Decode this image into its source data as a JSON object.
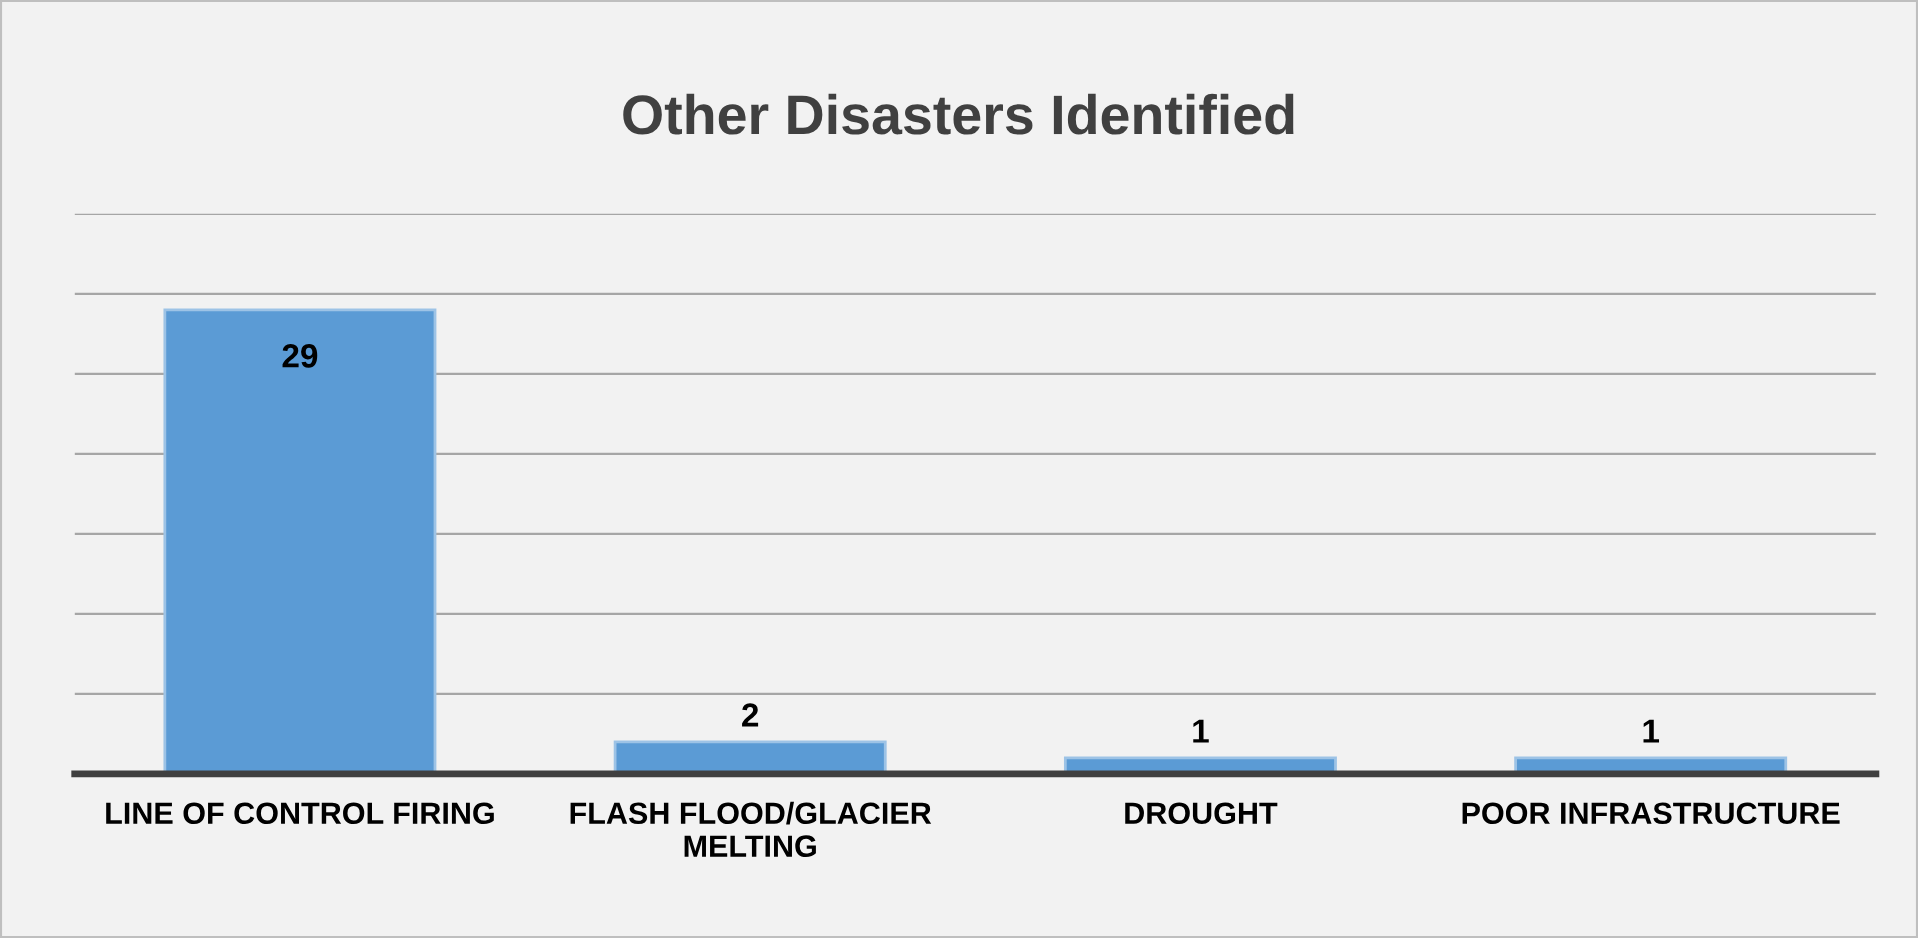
{
  "chart_data": {
    "type": "bar",
    "title": "Other Disasters Identified",
    "categories": [
      "LINE OF CONTROL FIRING",
      "FLASH FLOOD/GLACIER\nMELTING",
      "DROUGHT",
      "POOR INFRASTRUCTURE"
    ],
    "values": [
      29,
      2,
      1,
      1
    ],
    "color": "#5b9bd5",
    "ylim": [
      0,
      35
    ],
    "yticks": [
      {
        "value": 0,
        "label": null
      },
      {
        "value": 5,
        "label": null
      },
      {
        "value": 10,
        "label": null
      },
      {
        "value": 15,
        "label": null
      },
      {
        "value": 20,
        "label": null
      },
      {
        "value": 25,
        "label": null
      },
      {
        "value": 30,
        "label": null
      },
      {
        "value": 35,
        "label": null
      }
    ],
    "grid": "y",
    "data_labels": true,
    "legend": false
  }
}
